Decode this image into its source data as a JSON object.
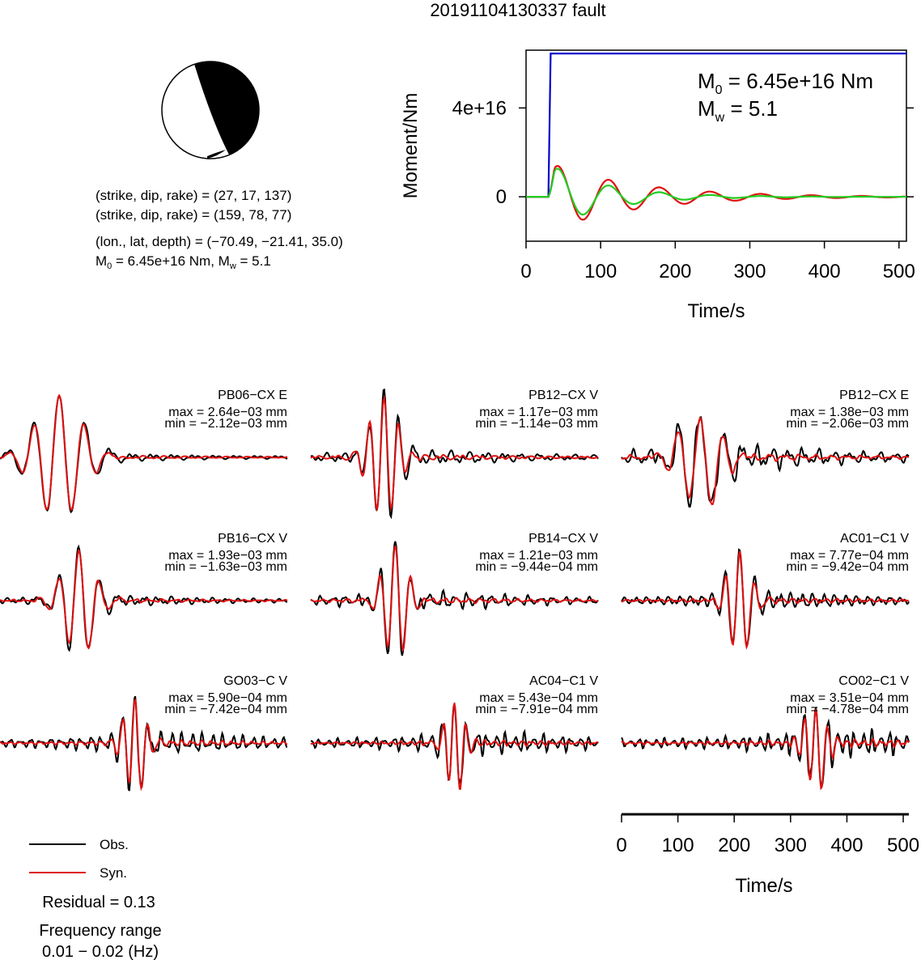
{
  "title": "20191104130337 fault",
  "colors": {
    "obs": "#000000",
    "syn": "#e01010",
    "moment": "#0000cc",
    "stf_red": "#e01010",
    "stf_green": "#22cc22",
    "beachball": "#000000"
  },
  "source": {
    "line1": "(strike, dip, rake) = (27, 17, 137)",
    "line2": "(strike, dip, rake) = (159, 78, 77)",
    "line3": "(lon., lat, depth) = (−70.49, −21.41, 35.0)",
    "m0_label": "M",
    "m0_sub": "0",
    "m0_value": " = 6.45e+16 Nm, M",
    "mw_sub": "w",
    "mw_value": " = 5.1"
  },
  "moment_panel": {
    "m0_text": "M",
    "m0_sub": "0",
    "m0_rest": " = 6.45e+16 Nm",
    "mw_text": "M",
    "mw_sub": "w",
    "mw_rest": " = 5.1"
  },
  "legend": {
    "obs": "Obs.",
    "syn": "Syn.",
    "residual": "Residual = 0.13",
    "freq_label": "Frequency range",
    "freq_value": "0.01 − 0.02 (Hz)"
  },
  "chart_data": [
    {
      "type": "line",
      "name": "moment",
      "xlabel": "Time/s",
      "ylabel": "Moment/Nm",
      "xlim": [
        0,
        510
      ],
      "ylim": [
        -2e+16,
        6.6e+16
      ],
      "xticks": [
        0,
        100,
        200,
        300,
        400,
        500
      ],
      "yticks": [
        0,
        4e+16
      ],
      "ytick_labels": [
        "0",
        "4e+16"
      ],
      "series": [
        {
          "color": "moment",
          "x": [
            0,
            30,
            33,
            510
          ],
          "y": [
            0,
            0,
            6.45e+16,
            6.45e+16
          ]
        },
        {
          "color": "stf_red",
          "kind": "stf",
          "onset": 30,
          "amp": 1.55e+16,
          "period": 68,
          "decay": 115,
          "phase": 0.35
        },
        {
          "color": "stf_green",
          "kind": "stf",
          "onset": 30,
          "amp": 1.5e+16,
          "period": 68,
          "decay": 75,
          "phase": 0.3
        }
      ]
    },
    {
      "type": "line",
      "name": "waveforms",
      "xlabel": "Time/s",
      "xlim": [
        0,
        510
      ],
      "xticks": [
        0,
        100,
        200,
        300,
        400,
        500
      ],
      "series_names": [
        "Obs.",
        "Syn."
      ],
      "stations": [
        {
          "label": "PB06−CX E",
          "max": "max = 2.64e−03 mm",
          "min": "min = −2.12e−03 mm",
          "center": 105,
          "period": 45,
          "width": 40,
          "up": 1.0,
          "obs_noise": 0.04,
          "syn_noise": 0.02
        },
        {
          "label": "PB12−CX V",
          "max": "max = 1.17e−03 mm",
          "min": "min = −1.14e−03 mm",
          "center": 130,
          "period": 26,
          "width": 24,
          "up": 1.0,
          "obs_noise": 0.07,
          "syn_noise": 0.03
        },
        {
          "label": "PB12−CX E",
          "max": "max = 1.38e−03 mm",
          "min": "min = −2.06e−03 mm",
          "center": 140,
          "period": 40,
          "width": 36,
          "up": 0.75,
          "obs_noise": 0.12,
          "syn_noise": 0.04
        },
        {
          "label": "PB16−CX V",
          "max": "max = 1.93e−03 mm",
          "min": "min = −1.63e−03 mm",
          "center": 140,
          "period": 36,
          "width": 28,
          "up": 0.85,
          "obs_noise": 0.05,
          "syn_noise": 0.02
        },
        {
          "label": "PB14−CX V",
          "max": "max = 1.21e−03 mm",
          "min": "min = −9.44e−04 mm",
          "center": 150,
          "period": 28,
          "width": 22,
          "up": 0.9,
          "obs_noise": 0.08,
          "syn_noise": 0.03
        },
        {
          "label": "AC01−C1 V",
          "max": "max = 7.77e−04 mm",
          "min": "min = −9.42e−04 mm",
          "center": 210,
          "period": 26,
          "width": 20,
          "up": 0.85,
          "obs_noise": 0.08,
          "syn_noise": 0.03
        },
        {
          "label": "GO03−C V",
          "max": "max = 5.90e−04 mm",
          "min": "min = −7.42e−04 mm",
          "center": 240,
          "period": 22,
          "width": 18,
          "up": 0.8,
          "obs_noise": 0.1,
          "syn_noise": 0.03
        },
        {
          "label": "AC04−C1 V",
          "max": "max = 5.43e−04 mm",
          "min": "min = −7.91e−04 mm",
          "center": 255,
          "period": 20,
          "width": 16,
          "up": 0.75,
          "obs_noise": 0.1,
          "syn_noise": 0.03
        },
        {
          "label": "CO02−C1 V",
          "max": "max = 3.51e−04 mm",
          "min": "min = −4.78e−04 mm",
          "center": 345,
          "period": 20,
          "width": 18,
          "up": 0.7,
          "obs_noise": 0.12,
          "syn_noise": 0.04
        }
      ]
    }
  ]
}
